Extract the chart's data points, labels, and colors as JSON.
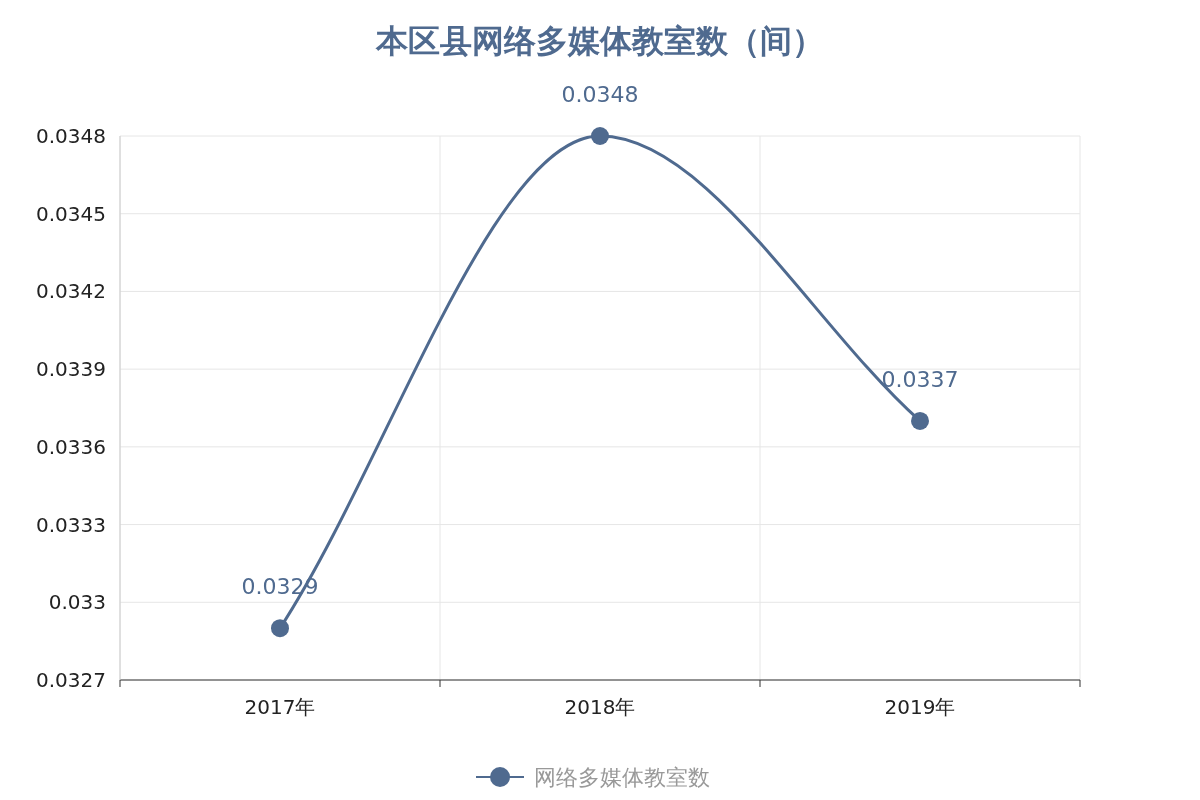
{
  "chart_data": {
    "type": "line",
    "title": "本区县网络多媒体教室数（间）",
    "categories": [
      "2017年",
      "2018年",
      "2019年"
    ],
    "series": [
      {
        "name": "网络多媒体教室数",
        "color": "#4f6a8f",
        "values": [
          0.0329,
          0.0348,
          0.0337
        ]
      }
    ],
    "ylim": [
      0.0327,
      0.0348
    ],
    "yticks": [
      0.0327,
      0.033,
      0.0333,
      0.0336,
      0.0339,
      0.0342,
      0.0345,
      0.0348
    ],
    "grid": true,
    "legend": "bottom",
    "marker": "circle",
    "line_style": "solid",
    "data_labels": true
  }
}
